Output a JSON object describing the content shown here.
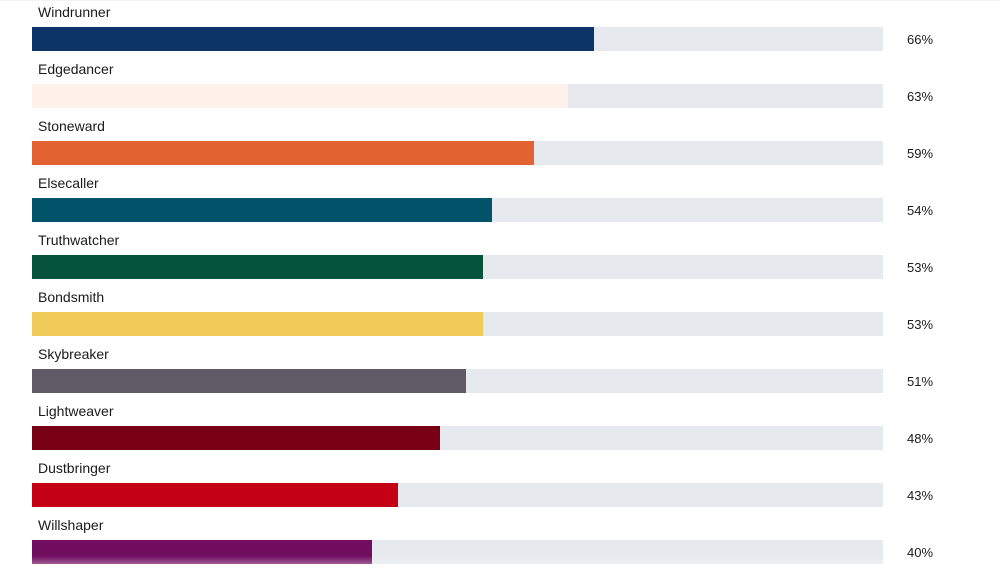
{
  "chart_data": {
    "type": "bar",
    "orientation": "horizontal",
    "title": "",
    "xlabel": "",
    "ylabel": "",
    "xlim": [
      0,
      100
    ],
    "grid": false,
    "legend": "none",
    "track_color": "#e6e9ed",
    "categories": [
      "Windrunner",
      "Edgedancer",
      "Stoneward",
      "Elsecaller",
      "Truthwatcher",
      "Bondsmith",
      "Skybreaker",
      "Lightweaver",
      "Dustbringer",
      "Willshaper"
    ],
    "values": [
      66,
      63,
      59,
      54,
      53,
      53,
      51,
      48,
      43,
      40
    ],
    "value_labels": [
      "66%",
      "63%",
      "59%",
      "54%",
      "53%",
      "53%",
      "51%",
      "48%",
      "43%",
      "40%"
    ],
    "colors": [
      "#0d3466",
      "#fdf1ea",
      "#e26232",
      "#02536a",
      "#06533b",
      "#f0cb5a",
      "#5f5a66",
      "#770015",
      "#c30014",
      "#710e60"
    ]
  }
}
